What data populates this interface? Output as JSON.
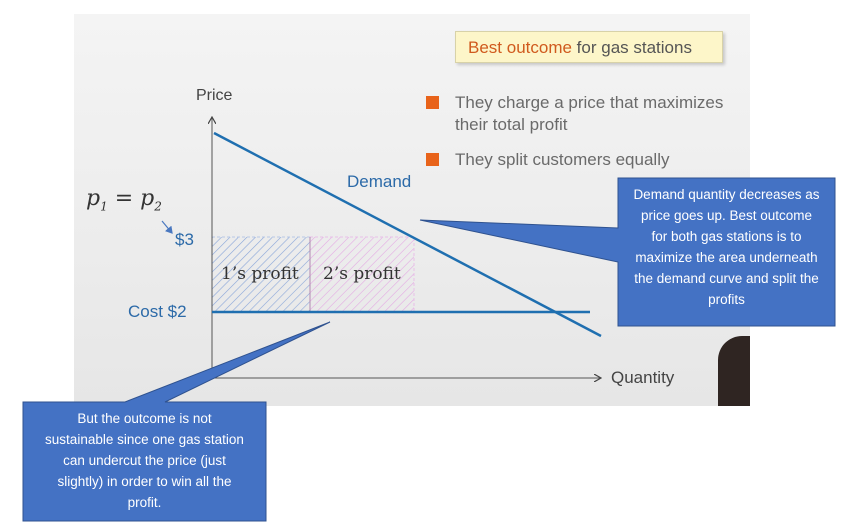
{
  "title": {
    "highlight": "Best outcome",
    "rest": " for gas stations"
  },
  "bullets": [
    {
      "line1": "They charge a price that maximizes",
      "line2": "their total profit"
    },
    {
      "line1": "They split customers equally",
      "line2": ""
    }
  ],
  "axes": {
    "y_label": "Price",
    "x_label": "Quantity"
  },
  "labels": {
    "demand": "Demand",
    "equation_p1": "p",
    "equation_sub1": "1",
    "equation_eq": " = ",
    "equation_p2": "p",
    "equation_sub2": "2",
    "price_3": "$3",
    "cost": "Cost $2",
    "profit_1": "1’s profit",
    "profit_2": "2’s profit"
  },
  "callout_right": {
    "lines": [
      "Demand quantity decreases as",
      "price goes up. Best outcome",
      "for both gas stations is to",
      "maximize the area underneath",
      "the demand curve and split the",
      "profits"
    ]
  },
  "callout_bottom": {
    "lines": [
      "But the outcome is not",
      "sustainable since one gas station",
      "can undercut the price (just",
      "slightly) in order to win all the",
      "profit."
    ]
  },
  "colors": {
    "line": "#1f6fb0",
    "callout": "#4472c4",
    "bullet": "#e8631a",
    "title_highlight": "#d05a1e"
  }
}
